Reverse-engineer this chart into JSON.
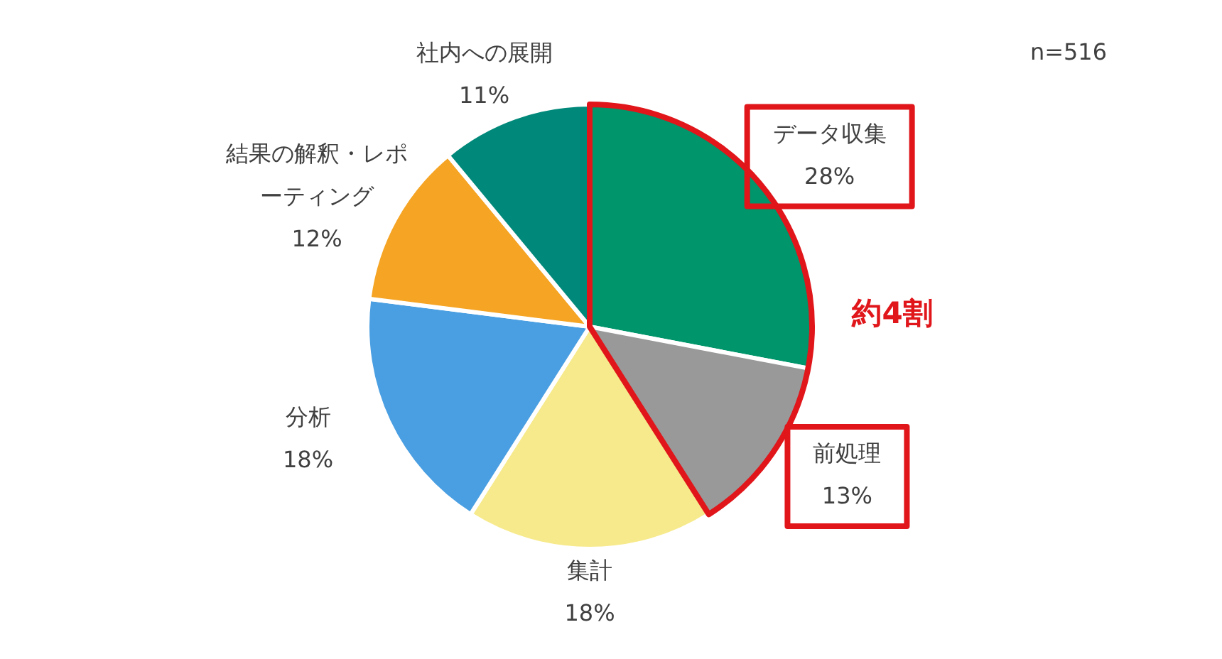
{
  "chart_data": {
    "type": "pie",
    "categories": [
      "データ収集",
      "前処理",
      "集計",
      "分析",
      "結果の解釈・レポーティング",
      "社内への展開"
    ],
    "values": [
      28,
      13,
      18,
      18,
      12,
      11
    ],
    "value_labels": [
      "28%",
      "13%",
      "18%",
      "18%",
      "12%",
      "11%"
    ],
    "colors": [
      "#00956a",
      "#999999",
      "#f7ea8c",
      "#4a9fe2",
      "#f5a424",
      "#00897a"
    ],
    "annotations": [
      "n=516",
      "約4割"
    ],
    "legend": false
  }
}
